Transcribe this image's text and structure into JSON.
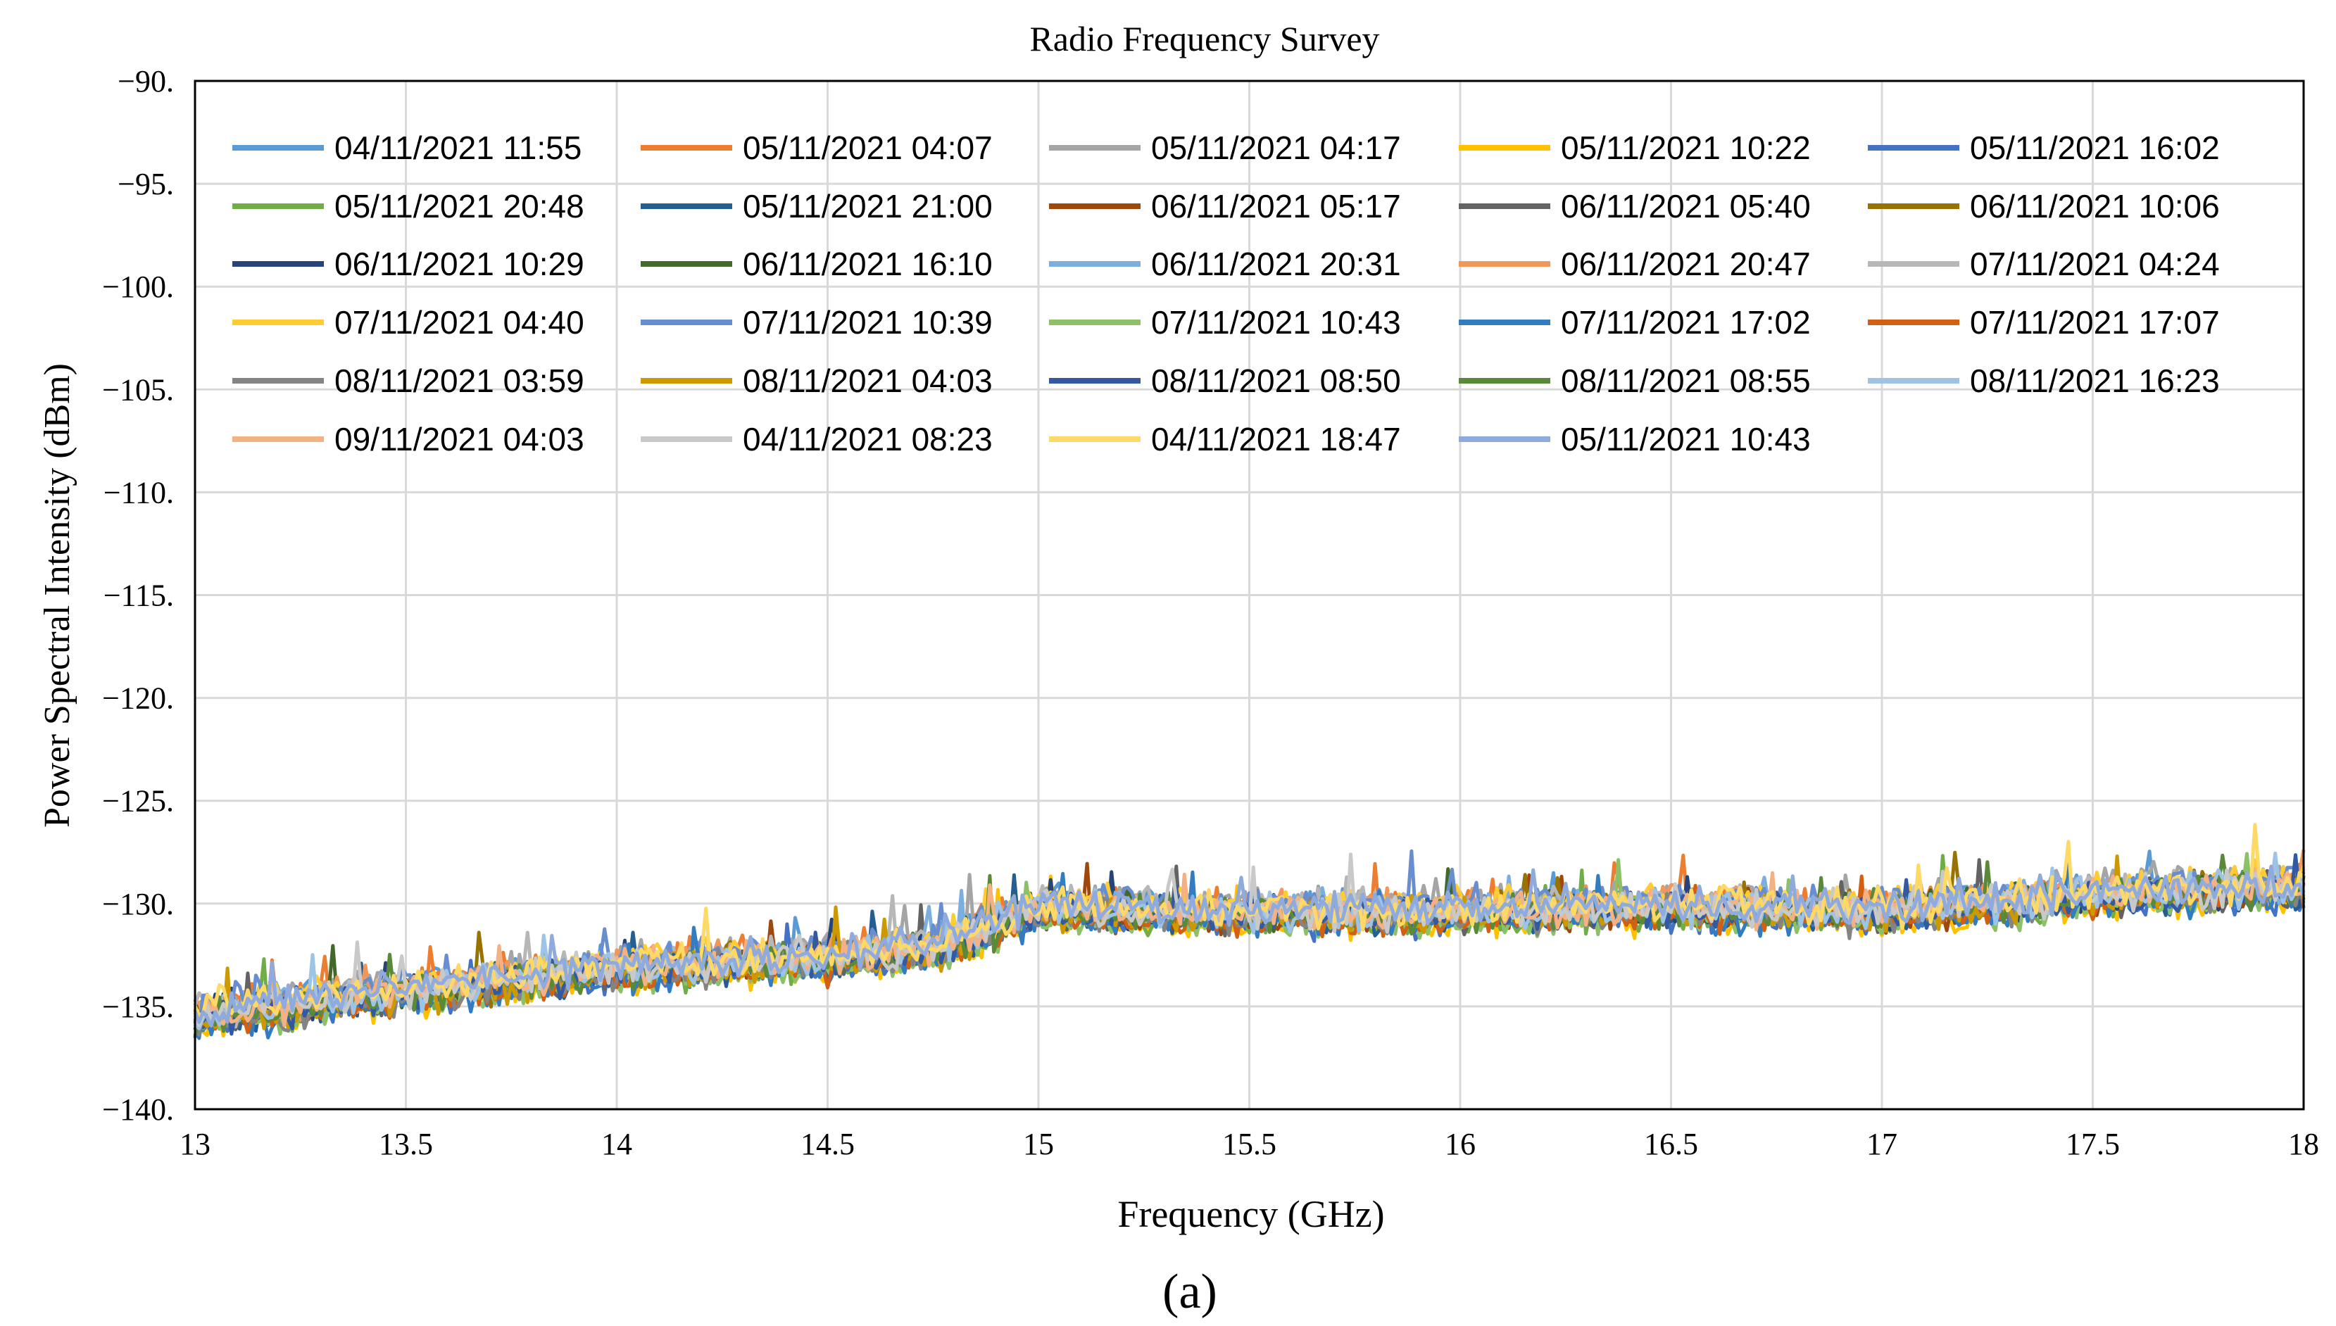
{
  "chart_data": {
    "type": "line",
    "title": "Radio Frequency Survey",
    "xlabel": "Frequency (GHz)",
    "ylabel": "Power Spectral Intensity (dBm)",
    "caption": "(a)",
    "xlim": [
      13,
      18
    ],
    "ylim": [
      -140,
      -90
    ],
    "x_ticks": [
      13,
      13.5,
      14,
      14.5,
      15,
      15.5,
      16,
      16.5,
      17,
      17.5,
      18
    ],
    "x_tick_labels": [
      "13",
      "13.5",
      "14",
      "14.5",
      "15",
      "15.5",
      "16",
      "16.5",
      "17",
      "17.5",
      "18"
    ],
    "y_ticks": [
      -90,
      -95,
      -100,
      -105,
      -110,
      -115,
      -120,
      -125,
      -130,
      -135,
      -140
    ],
    "y_tick_labels": [
      "−90.",
      "−95.",
      "−100.",
      "−105.",
      "−110.",
      "−115.",
      "−120.",
      "−125.",
      "−130.",
      "−135.",
      "−140."
    ],
    "grid": true,
    "legend_position": "top",
    "baseline_profile": {
      "x": [
        13.0,
        13.5,
        14.0,
        14.5,
        14.75,
        15.0,
        15.3,
        15.5,
        16.0,
        16.5,
        17.0,
        17.5,
        18.0
      ],
      "y": [
        -135.5,
        -134.3,
        -133.2,
        -132.6,
        -132.2,
        -130.3,
        -130.4,
        -130.5,
        -130.4,
        -130.2,
        -130.4,
        -129.6,
        -129.2
      ]
    },
    "noise_amplitude_dB": 0.7,
    "series": [
      {
        "name": "04/11/2021 11:55",
        "color": "#5b9bd5"
      },
      {
        "name": "05/11/2021 04:07",
        "color": "#ed7d31"
      },
      {
        "name": "05/11/2021 04:17",
        "color": "#a5a5a5"
      },
      {
        "name": "05/11/2021 10:22",
        "color": "#ffc000"
      },
      {
        "name": "05/11/2021 16:02",
        "color": "#4472c4"
      },
      {
        "name": "05/11/2021 20:48",
        "color": "#70ad47"
      },
      {
        "name": "05/11/2021 21:00",
        "color": "#255e91"
      },
      {
        "name": "06/11/2021 05:17",
        "color": "#9e480e"
      },
      {
        "name": "06/11/2021 05:40",
        "color": "#636363"
      },
      {
        "name": "06/11/2021 10:06",
        "color": "#997300"
      },
      {
        "name": "06/11/2021 10:29",
        "color": "#264478"
      },
      {
        "name": "06/11/2021 16:10",
        "color": "#43682b"
      },
      {
        "name": "06/11/2021 20:31",
        "color": "#7cafdd"
      },
      {
        "name": "06/11/2021 20:47",
        "color": "#f1975a"
      },
      {
        "name": "07/11/2021 04:24",
        "color": "#b7b7b7"
      },
      {
        "name": "07/11/2021 04:40",
        "color": "#ffcd33"
      },
      {
        "name": "07/11/2021 10:39",
        "color": "#698ed0"
      },
      {
        "name": "07/11/2021 10:43",
        "color": "#8cc168"
      },
      {
        "name": "07/11/2021 17:02",
        "color": "#327dc2"
      },
      {
        "name": "07/11/2021 17:07",
        "color": "#d26012"
      },
      {
        "name": "08/11/2021 03:59",
        "color": "#848484"
      },
      {
        "name": "08/11/2021 04:03",
        "color": "#cc9a00"
      },
      {
        "name": "08/11/2021 08:50",
        "color": "#335aa1"
      },
      {
        "name": "08/11/2021 08:55",
        "color": "#5a8a39"
      },
      {
        "name": "08/11/2021 16:23",
        "color": "#9dc3e6"
      },
      {
        "name": "09/11/2021 04:03",
        "color": "#f4b183"
      },
      {
        "name": "04/11/2021 08:23",
        "color": "#c9c9c9"
      },
      {
        "name": "04/11/2021 18:47",
        "color": "#ffd966"
      },
      {
        "name": "05/11/2021 10:43",
        "color": "#8faadc"
      }
    ]
  }
}
